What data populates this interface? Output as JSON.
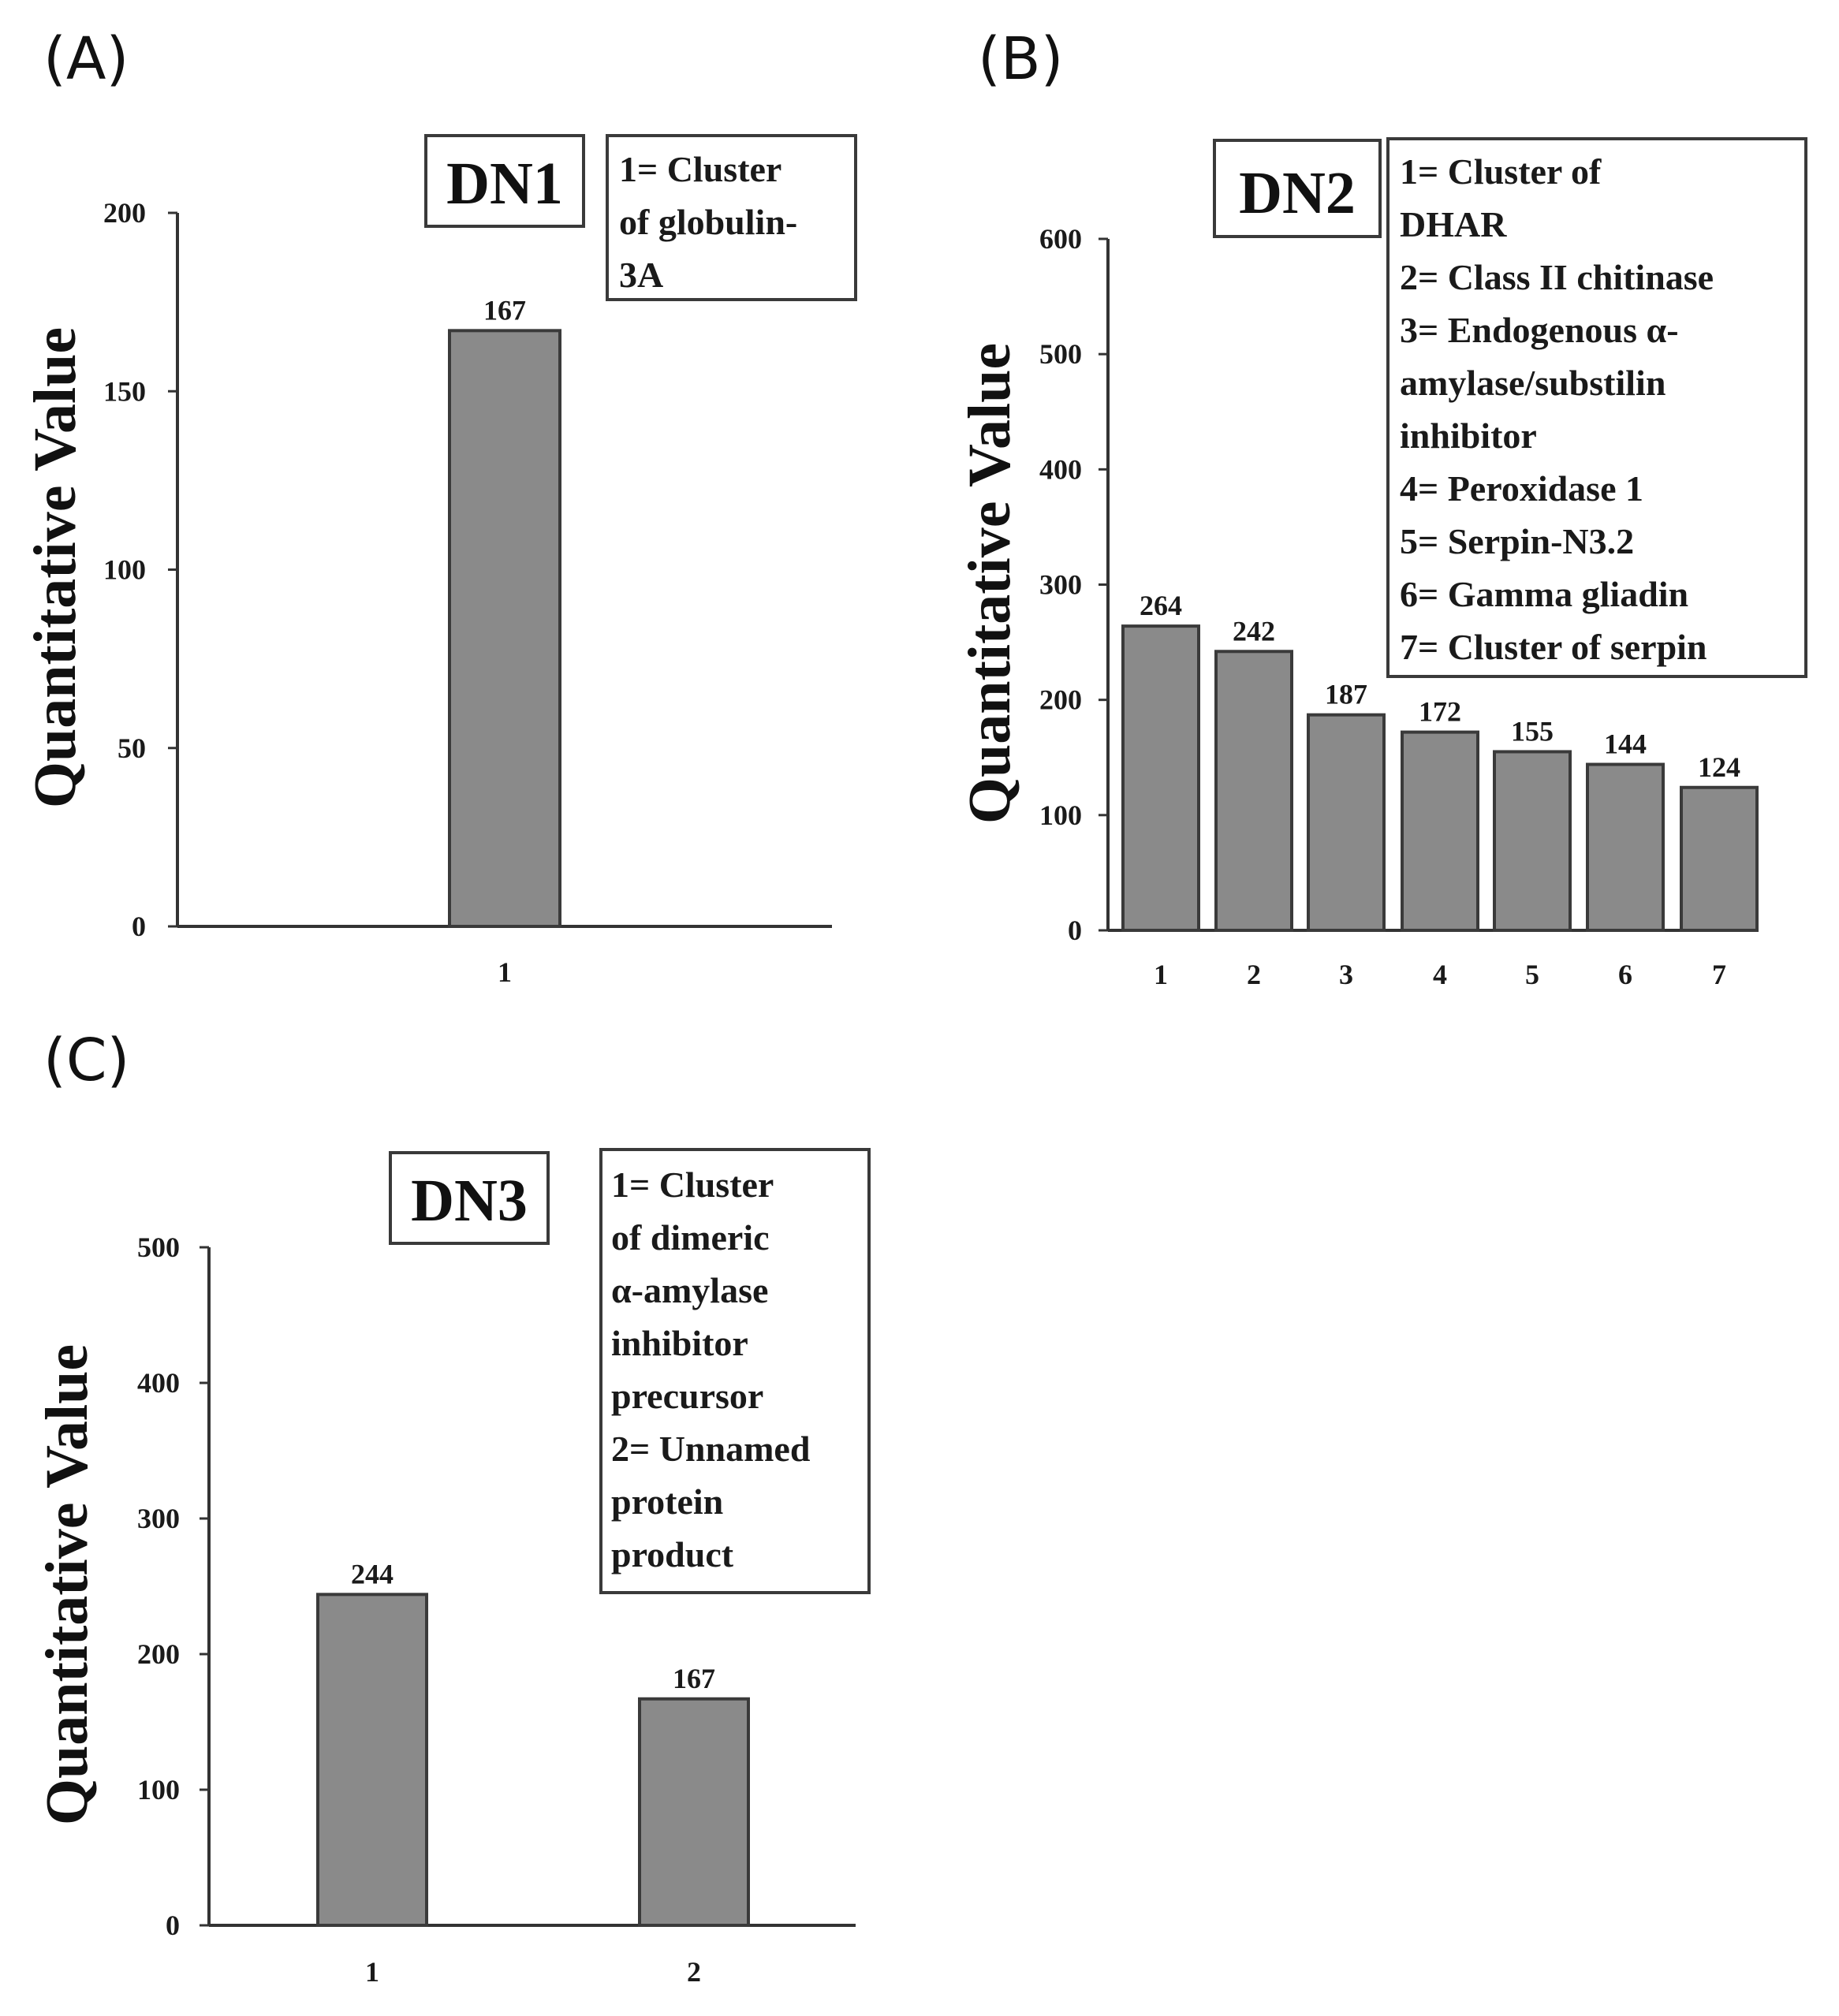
{
  "colors": {
    "bar_fill": "#8a8a8a",
    "bar_stroke": "#3a3a3a",
    "axis": "#333333",
    "text": "#1a1a1a"
  },
  "chart_data": [
    {
      "panel": "(A)",
      "type": "bar",
      "title": "DN1",
      "ylabel": "Quantitative Value",
      "xlabel": "",
      "categories": [
        "1"
      ],
      "values": [
        167
      ],
      "data_labels": [
        "167"
      ],
      "ylim": [
        0,
        200
      ],
      "yticks": [
        0,
        50,
        100,
        150,
        200
      ],
      "legend_lines": [
        "1= Cluster",
        "of globulin-",
        "3A"
      ]
    },
    {
      "panel": "(B)",
      "type": "bar",
      "title": "DN2",
      "ylabel": "Quantitative Value",
      "xlabel": "",
      "categories": [
        "1",
        "2",
        "3",
        "4",
        "5",
        "6",
        "7"
      ],
      "values": [
        264,
        242,
        187,
        172,
        155,
        144,
        124
      ],
      "data_labels": [
        "264",
        "242",
        "187",
        "172",
        "155",
        "144",
        "124"
      ],
      "ylim": [
        0,
        600
      ],
      "yticks": [
        0,
        100,
        200,
        300,
        400,
        500,
        600
      ],
      "legend_lines": [
        "1= Cluster of",
        "DHAR",
        "2= Class II chitinase",
        "3= Endogenous α-",
        "amylase/substilin",
        "inhibitor",
        "4= Peroxidase 1",
        "5= Serpin-N3.2",
        "6= Gamma gliadin",
        "7= Cluster of serpin"
      ]
    },
    {
      "panel": "(C)",
      "type": "bar",
      "title": "DN3",
      "ylabel": "Quantitative Value",
      "xlabel": "",
      "categories": [
        "1",
        "2"
      ],
      "values": [
        244,
        167
      ],
      "data_labels": [
        "244",
        "167"
      ],
      "ylim": [
        0,
        500
      ],
      "yticks": [
        0,
        100,
        200,
        300,
        400,
        500
      ],
      "legend_lines": [
        "1= Cluster",
        "of dimeric",
        "α-amylase",
        "inhibitor",
        "precursor",
        "2= Unnamed",
        "protein",
        "product"
      ]
    }
  ]
}
